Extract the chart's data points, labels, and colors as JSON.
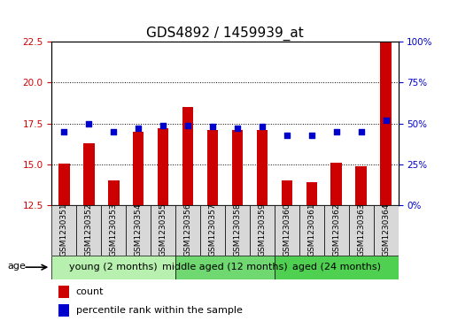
{
  "title": "GDS4892 / 1459939_at",
  "samples": [
    "GSM1230351",
    "GSM1230352",
    "GSM1230353",
    "GSM1230354",
    "GSM1230355",
    "GSM1230356",
    "GSM1230357",
    "GSM1230358",
    "GSM1230359",
    "GSM1230360",
    "GSM1230361",
    "GSM1230362",
    "GSM1230363",
    "GSM1230364"
  ],
  "counts": [
    15.05,
    16.3,
    14.05,
    17.0,
    17.2,
    18.5,
    17.1,
    17.1,
    17.1,
    14.05,
    13.9,
    15.1,
    14.9,
    22.5
  ],
  "percentiles": [
    45,
    50,
    45,
    47,
    49,
    49,
    48,
    47,
    48,
    43,
    43,
    45,
    45,
    52
  ],
  "ylim_left": [
    12.5,
    22.5
  ],
  "ylim_right": [
    0,
    100
  ],
  "yticks_left": [
    12.5,
    15.0,
    17.5,
    20.0,
    22.5
  ],
  "yticks_right": [
    0,
    25,
    50,
    75,
    100
  ],
  "ytick_labels_right": [
    "0%",
    "25%",
    "50%",
    "75%",
    "100%"
  ],
  "groups": [
    {
      "label": "young (2 months)",
      "start": 0,
      "end": 5
    },
    {
      "label": "middle aged (12 months)",
      "start": 5,
      "end": 9
    },
    {
      "label": "aged (24 months)",
      "start": 9,
      "end": 14
    }
  ],
  "group_colors": [
    "#b8f0b0",
    "#70d870",
    "#50d050"
  ],
  "bar_color": "#cc0000",
  "dot_color": "#0000cc",
  "bar_width": 0.45,
  "bg_color": "#ffffff",
  "sample_box_color": "#d8d8d8",
  "tick_label_color_left": "#cc0000",
  "tick_label_color_right": "#0000cc",
  "age_label": "age",
  "legend_count_label": "count",
  "legend_pct_label": "percentile rank within the sample",
  "title_fontsize": 11,
  "tick_fontsize": 7.5,
  "sample_label_fontsize": 6.5,
  "group_label_fontsize": 8,
  "legend_fontsize": 8
}
